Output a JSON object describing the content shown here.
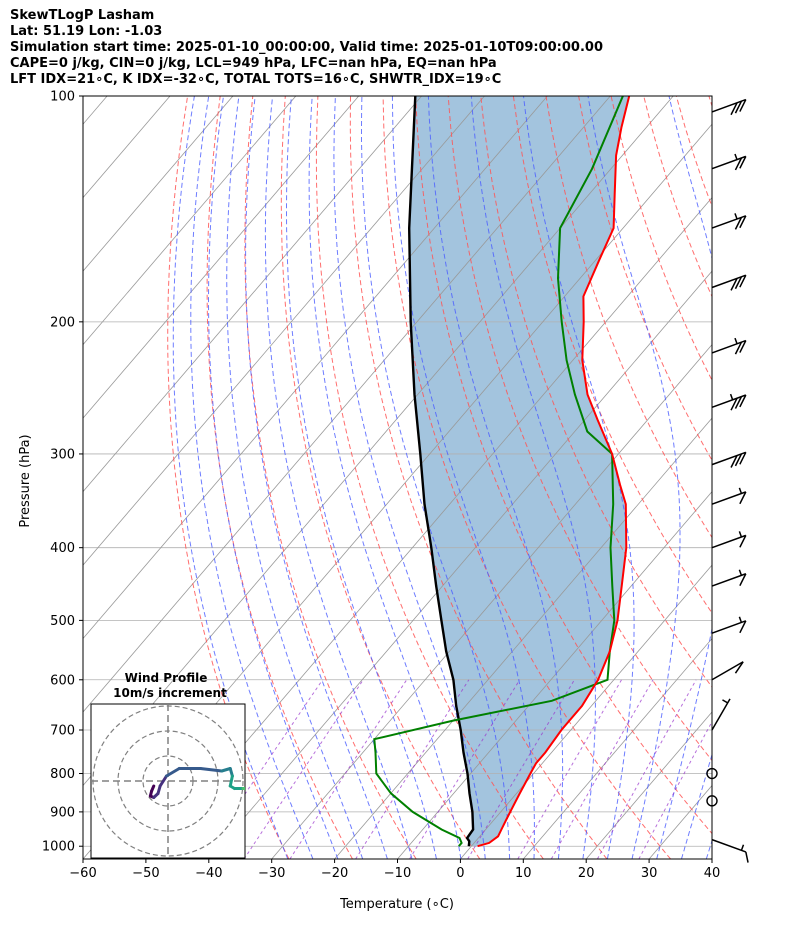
{
  "title_lines": [
    "SkewTLogP Lasham",
    "Lat: 51.19   Lon: -1.03",
    "Simulation start time: 2025-01-10_00:00:00, Valid time: 2025-01-10T09:00:00.00",
    "CAPE=0 j/kg, CIN=0 j/kg, LCL=949 hPa, LFC=nan hPa, EQ=nan hPa",
    "LFT IDX=21∘C, K IDX=-32∘C, TOTAL TOTS=16∘C, SHWTR_IDX=19∘C"
  ],
  "chart_data": {
    "type": "line",
    "subtype": "skew-t log-p",
    "xlabel": "Temperature (∘C)",
    "ylabel": "Pressure (hPa)",
    "xlim": [
      -60,
      40
    ],
    "ylim": [
      1040,
      100
    ],
    "y_scale": "log",
    "x_ticks": [
      "−60",
      "−50",
      "−40",
      "−30",
      "−20",
      "−10",
      "0",
      "10",
      "20",
      "30",
      "40"
    ],
    "y_ticks": [
      "100",
      "200",
      "300",
      "400",
      "500",
      "600",
      "700",
      "800",
      "900",
      "1000"
    ],
    "grid": true,
    "colors": {
      "temperature": "#ff0000",
      "dewpoint": "#008000",
      "parcel": "#000000",
      "shading": "#a3c4de",
      "dry_adiabat": "#ff5555",
      "moist_adiabat": "#4a5cff",
      "mixing_ratio": "#9933cc",
      "isotherm": "#999999"
    },
    "series": [],
    "temperature_profile": [
      [
        1000,
        1.0
      ],
      [
        990,
        2.4
      ],
      [
        970,
        2.9
      ],
      [
        950,
        2.5
      ],
      [
        925,
        2.0
      ],
      [
        900,
        1.5
      ],
      [
        850,
        0.5
      ],
      [
        800,
        -0.5
      ],
      [
        775,
        -1.0
      ],
      [
        750,
        -1.0
      ],
      [
        700,
        -1.5
      ],
      [
        650,
        -1.5
      ],
      [
        600,
        -2.5
      ],
      [
        550,
        -4.5
      ],
      [
        500,
        -7.5
      ],
      [
        450,
        -11.5
      ],
      [
        400,
        -16.0
      ],
      [
        350,
        -22.0
      ],
      [
        330,
        -25.5
      ],
      [
        300,
        -31.0
      ],
      [
        270,
        -38.0
      ],
      [
        250,
        -43.0
      ],
      [
        225,
        -48.5
      ],
      [
        200,
        -53.5
      ],
      [
        185,
        -57.0
      ],
      [
        165,
        -59.5
      ],
      [
        150,
        -61.5
      ],
      [
        135,
        -66.0
      ],
      [
        120,
        -71.0
      ],
      [
        110,
        -74.0
      ],
      [
        100,
        -77.0
      ]
    ],
    "dewpoint_profile": [
      [
        1000,
        -2.0
      ],
      [
        990,
        -2.0
      ],
      [
        975,
        -3.0
      ],
      [
        950,
        -7.0
      ],
      [
        900,
        -14.0
      ],
      [
        850,
        -20.0
      ],
      [
        800,
        -25.0
      ],
      [
        750,
        -28.0
      ],
      [
        720,
        -30.0
      ],
      [
        680,
        -20.0
      ],
      [
        640,
        -7.0
      ],
      [
        600,
        -1.0
      ],
      [
        550,
        -4.5
      ],
      [
        500,
        -8.0
      ],
      [
        450,
        -13.0
      ],
      [
        400,
        -18.5
      ],
      [
        350,
        -24.0
      ],
      [
        300,
        -31.0
      ],
      [
        280,
        -38.0
      ],
      [
        250,
        -45.0
      ],
      [
        225,
        -51.0
      ],
      [
        200,
        -57.0
      ],
      [
        175,
        -63.5
      ],
      [
        150,
        -70.0
      ],
      [
        125,
        -73.0
      ],
      [
        100,
        -78.0
      ]
    ],
    "parcel_profile": [
      [
        1000,
        -0.4
      ],
      [
        985,
        -1.0
      ],
      [
        975,
        -1.8
      ],
      [
        950,
        -2.0
      ],
      [
        900,
        -4.5
      ],
      [
        850,
        -7.5
      ],
      [
        800,
        -10.5
      ],
      [
        750,
        -14.0
      ],
      [
        700,
        -17.5
      ],
      [
        650,
        -21.5
      ],
      [
        600,
        -25.5
      ],
      [
        550,
        -30.5
      ],
      [
        500,
        -35.5
      ],
      [
        450,
        -41.0
      ],
      [
        400,
        -47.0
      ],
      [
        350,
        -54.0
      ],
      [
        300,
        -61.5
      ],
      [
        250,
        -70.5
      ],
      [
        200,
        -81.0
      ],
      [
        150,
        -94.0
      ],
      [
        100,
        -111.0
      ]
    ],
    "wind_barbs": [
      {
        "p": 105,
        "speed_kt": 30,
        "dir_deg": 290
      },
      {
        "p": 125,
        "speed_kt": 25,
        "dir_deg": 290
      },
      {
        "p": 150,
        "speed_kt": 25,
        "dir_deg": 290
      },
      {
        "p": 180,
        "speed_kt": 30,
        "dir_deg": 290
      },
      {
        "p": 220,
        "speed_kt": 25,
        "dir_deg": 290
      },
      {
        "p": 260,
        "speed_kt": 35,
        "dir_deg": 290
      },
      {
        "p": 310,
        "speed_kt": 30,
        "dir_deg": 290
      },
      {
        "p": 350,
        "speed_kt": 15,
        "dir_deg": 290
      },
      {
        "p": 400,
        "speed_kt": 15,
        "dir_deg": 290
      },
      {
        "p": 450,
        "speed_kt": 15,
        "dir_deg": 290
      },
      {
        "p": 520,
        "speed_kt": 15,
        "dir_deg": 290
      },
      {
        "p": 600,
        "speed_kt": 10,
        "dir_deg": 300
      },
      {
        "p": 700,
        "speed_kt": 5,
        "dir_deg": 330
      },
      {
        "p": 800,
        "speed_kt": 0,
        "dir_deg": 0
      },
      {
        "p": 870,
        "speed_kt": 0,
        "dir_deg": 0
      },
      {
        "p": 980,
        "speed_kt": 15,
        "dir_deg": 250
      }
    ],
    "inset": {
      "title": "Wind Profile",
      "subtitle": "10m/s increment",
      "ring_count": 3,
      "hodograph": [
        [
          -1.0,
          1.0
        ],
        [
          -1.5,
          2.0
        ],
        [
          -1.8,
          3.0
        ],
        [
          -1.0,
          3.3
        ],
        [
          0.0,
          2.5
        ],
        [
          0.5,
          1.0
        ],
        [
          2.0,
          -1.0
        ],
        [
          5.0,
          -2.5
        ],
        [
          10.0,
          -2.5
        ],
        [
          15.0,
          -2.0
        ],
        [
          17.0,
          -2.5
        ],
        [
          17.5,
          -1.0
        ],
        [
          17.0,
          1.0
        ],
        [
          18.0,
          1.5
        ],
        [
          20.0,
          1.5
        ],
        [
          22.0,
          1.5
        ],
        [
          23.0,
          1.8
        ],
        [
          24.0,
          1.5
        ],
        [
          26.0,
          1.5
        ]
      ]
    }
  }
}
